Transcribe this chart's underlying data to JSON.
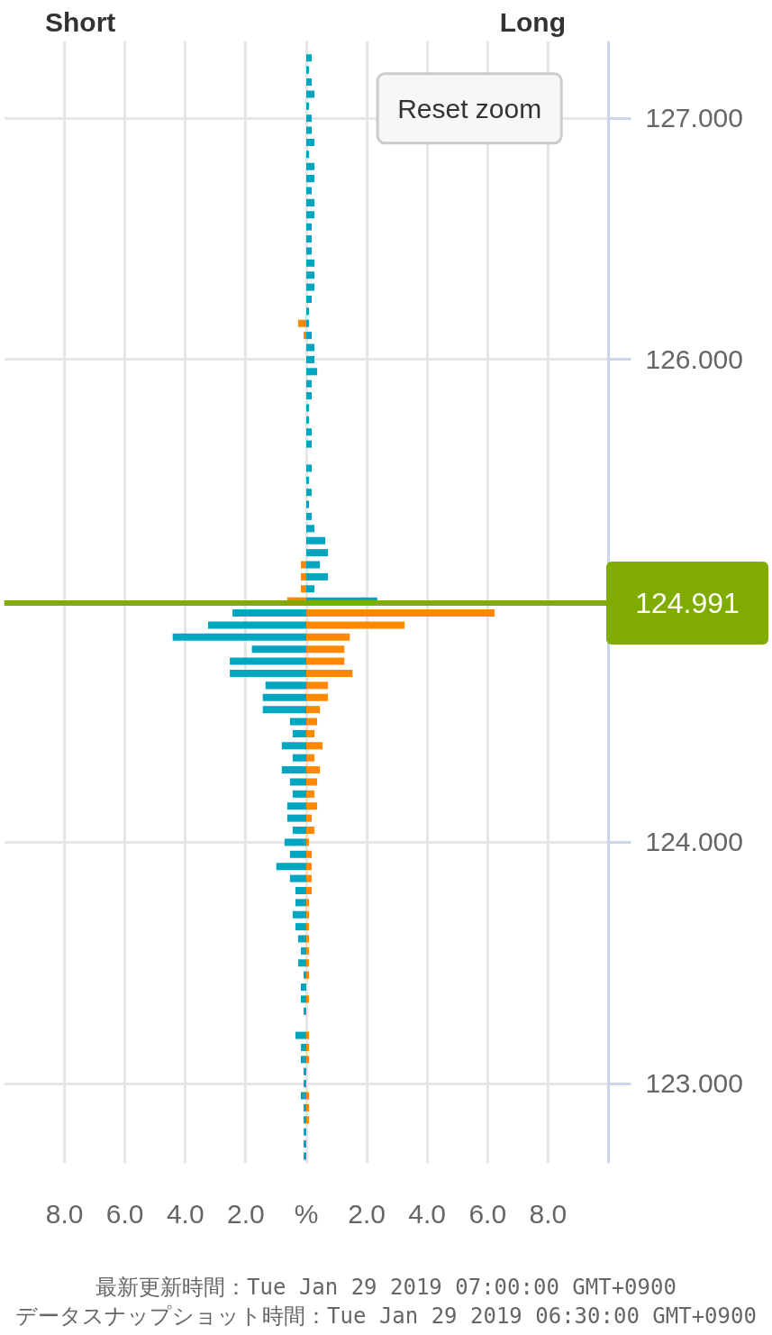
{
  "chart_data": {
    "type": "bar",
    "orientation": "horizontal",
    "x": [
      122.7,
      122.75,
      122.8,
      122.85,
      122.9,
      122.95,
      123.0,
      123.05,
      123.1,
      123.15,
      123.2,
      123.25,
      123.3,
      123.35,
      123.4,
      123.45,
      123.5,
      123.55,
      123.6,
      123.65,
      123.7,
      123.75,
      123.8,
      123.85,
      123.9,
      123.95,
      124.0,
      124.05,
      124.1,
      124.15,
      124.2,
      124.25,
      124.3,
      124.35,
      124.4,
      124.45,
      124.5,
      124.55,
      124.6,
      124.65,
      124.7,
      124.75,
      124.8,
      124.85,
      124.9,
      124.95,
      125.0,
      125.05,
      125.1,
      125.15,
      125.2,
      125.25,
      125.3,
      125.35,
      125.4,
      125.45,
      125.5,
      125.55,
      125.6,
      125.65,
      125.7,
      125.75,
      125.8,
      125.85,
      125.9,
      125.95,
      126.0,
      126.05,
      126.1,
      126.15,
      126.2,
      126.25,
      126.3,
      126.35,
      126.4,
      126.45,
      126.5,
      126.55,
      126.6,
      126.65,
      126.7,
      126.75,
      126.8,
      126.85,
      126.9,
      126.95,
      127.0,
      127.05,
      127.1,
      127.15,
      127.2,
      127.25
    ],
    "series": [
      {
        "color": "#00a6c0",
        "values": [
          -0.09,
          -0.09,
          -0.09,
          -0.09,
          -0.09,
          -0.18,
          -0.09,
          -0.09,
          -0.18,
          -0.18,
          -0.36,
          null,
          -0.09,
          -0.18,
          -0.18,
          -0.09,
          -0.27,
          -0.18,
          -0.27,
          -0.36,
          -0.45,
          -0.36,
          -0.36,
          -0.54,
          -0.99,
          -0.54,
          -0.72,
          -0.45,
          -0.63,
          -0.63,
          -0.45,
          -0.54,
          -0.81,
          -0.45,
          -0.81,
          -0.45,
          -0.54,
          -1.44,
          -1.44,
          -1.35,
          -2.53,
          -2.53,
          -1.8,
          -4.42,
          -3.25,
          -2.44,
          2.35,
          0.27,
          0.72,
          0.45,
          0.72,
          0.63,
          0.27,
          0.18,
          0.09,
          0.18,
          0.09,
          0.18,
          null,
          0.18,
          0.18,
          0.09,
          0.09,
          0.18,
          0.18,
          0.36,
          0.27,
          0.27,
          0.18,
          0.09,
          0.09,
          0.18,
          0.27,
          0.27,
          0.27,
          0.18,
          0.18,
          0.18,
          0.27,
          0.27,
          0.18,
          0.27,
          0.27,
          0.09,
          0.27,
          0.18,
          0.18,
          0.09,
          0.27,
          0.18,
          0.09,
          0.18
        ]
      },
      {
        "color": "#ff8800",
        "values": [
          null,
          null,
          null,
          0.09,
          0.09,
          0.09,
          null,
          null,
          0.09,
          0.09,
          0.09,
          null,
          null,
          0.09,
          null,
          0.09,
          0.09,
          0.09,
          0.09,
          0.09,
          0.09,
          0.09,
          0.18,
          0.18,
          0.18,
          0.18,
          0.09,
          0.27,
          0.18,
          0.36,
          0.27,
          0.36,
          0.45,
          0.27,
          0.54,
          0.27,
          0.36,
          0.45,
          0.72,
          0.72,
          1.53,
          1.26,
          1.26,
          1.44,
          3.25,
          6.23,
          -0.63,
          -0.18,
          -0.18,
          -0.18,
          null,
          null,
          null,
          null,
          null,
          null,
          null,
          null,
          null,
          null,
          null,
          null,
          null,
          null,
          null,
          null,
          null,
          null,
          -0.09,
          -0.27,
          null,
          null,
          null,
          null,
          null,
          null,
          null,
          null,
          null,
          null,
          null,
          null,
          null,
          null,
          null,
          null,
          null,
          null,
          null,
          null,
          null,
          null
        ]
      }
    ],
    "xlim": [
      -10,
      10
    ],
    "xticks": [
      {
        "value": -8,
        "label": "8.0"
      },
      {
        "value": -6,
        "label": "6.0"
      },
      {
        "value": -4,
        "label": "4.0"
      },
      {
        "value": -2,
        "label": "2.0"
      },
      {
        "value": 0,
        "label": "%"
      },
      {
        "value": 2,
        "label": "2.0"
      },
      {
        "value": 4,
        "label": "4.0"
      },
      {
        "value": 6,
        "label": "6.0"
      },
      {
        "value": 8,
        "label": "8.0"
      }
    ],
    "ylim": [
      122.67,
      127.32
    ],
    "yticks": [
      {
        "value": 123,
        "label": "123.000"
      },
      {
        "value": 124,
        "label": "124.000"
      },
      {
        "value": 126,
        "label": "126.000"
      },
      {
        "value": 127,
        "label": "127.000"
      }
    ],
    "grid": true,
    "ref_lines": [
      {
        "axis": "y",
        "value": 124.991,
        "label": "124.991",
        "color": "#80ab00"
      }
    ],
    "annotations": [
      "Short",
      "Long",
      "Reset zoom",
      "最新更新時間：Tue Jan 29 2019 07:00:00 GMT+0900",
      "データスナップショット時間：Tue Jan 29 2019 06:30:00 GMT+0900"
    ]
  }
}
